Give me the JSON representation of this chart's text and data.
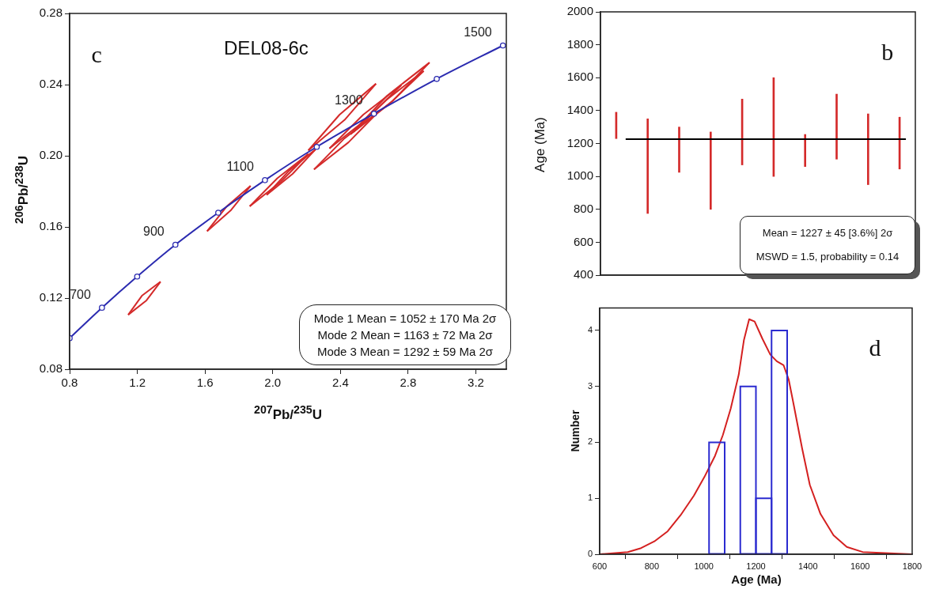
{
  "chart_data": [
    {
      "type": "line",
      "title": "DEL08-6c",
      "xlabel": "$^{207}$Pb/$^{235}$U",
      "ylabel": "$^{206}$Pb/$^{238}$U",
      "xlim": [
        0.8,
        3.38
      ],
      "xticks": [
        0.8,
        1.2,
        1.6,
        {
          "value": 2.0,
          "label": "2.0"
        },
        2.4,
        2.8,
        3.2
      ],
      "ylim": [
        0.08,
        0.28
      ],
      "yticks": [
        0.08,
        0.12,
        0.16,
        {
          "value": 0.2,
          "label": "0.20"
        },
        0.24,
        0.28
      ],
      "grid": false,
      "legend": false,
      "marker": "circle",
      "series": [
        {
          "color": "#2b2bb0",
          "x": [
            0.8,
            0.991,
            1.199,
            1.425,
            1.678,
            1.954,
            2.26,
            2.598,
            2.969,
            3.36
          ],
          "values": [
            0.0975,
            0.1146,
            0.1321,
            0.15,
            0.168,
            0.1863,
            0.205,
            0.2237,
            0.2432,
            0.262
          ]
        },
        {
          "color": "#d42a2a",
          "marker": "none",
          "x": [
            1.146,
            1.227,
            1.337
          ],
          "values": [
            0.1106,
            0.1213,
            0.1292
          ]
        },
        {
          "color": "#d42a2a",
          "marker": "none",
          "x": [
            1.146,
            1.254,
            1.337
          ],
          "values": [
            0.1106,
            0.1187,
            0.1292
          ]
        },
        {
          "color": "#d42a2a",
          "marker": "none",
          "x": [
            1.612,
            1.728,
            1.869
          ],
          "values": [
            0.1576,
            0.1715,
            0.1831
          ]
        },
        {
          "color": "#d42a2a",
          "marker": "none",
          "x": [
            1.612,
            1.751,
            1.869
          ],
          "values": [
            0.1576,
            0.1692,
            0.1831
          ]
        },
        {
          "color": "#d42a2a",
          "marker": "none",
          "x": [
            1.864,
            2.027,
            2.21
          ],
          "values": [
            0.1716,
            0.1873,
            0.201
          ]
        },
        {
          "color": "#d42a2a",
          "marker": "none",
          "x": [
            1.864,
            2.047,
            2.21
          ],
          "values": [
            0.1716,
            0.1853,
            0.201
          ]
        },
        {
          "color": "#d42a2a",
          "marker": "none",
          "x": [
            1.964,
            2.097,
            2.252
          ],
          "values": [
            0.178,
            0.1917,
            0.2035
          ]
        },
        {
          "color": "#d42a2a",
          "marker": "none",
          "x": [
            1.964,
            2.117,
            2.252
          ],
          "values": [
            0.178,
            0.1898,
            0.2035
          ]
        },
        {
          "color": "#d42a2a",
          "marker": "none",
          "x": [
            2.21,
            2.395,
            2.61
          ],
          "values": [
            0.203,
            0.2231,
            0.2405
          ]
        },
        {
          "color": "#d42a2a",
          "marker": "none",
          "x": [
            2.21,
            2.425,
            2.61
          ],
          "values": [
            0.203,
            0.2202,
            0.2405
          ]
        },
        {
          "color": "#d42a2a",
          "marker": "none",
          "x": [
            2.244,
            2.423,
            2.626
          ],
          "values": [
            0.1923,
            0.2097,
            0.2249
          ]
        },
        {
          "color": "#d42a2a",
          "marker": "none",
          "x": [
            2.244,
            2.447,
            2.626
          ],
          "values": [
            0.1923,
            0.2075,
            0.2249
          ]
        },
        {
          "color": "#d42a2a",
          "marker": "none",
          "x": [
            2.335,
            2.535,
            2.759
          ],
          "values": [
            0.2041,
            0.2231,
            0.2397
          ]
        },
        {
          "color": "#d42a2a",
          "marker": "none",
          "x": [
            2.335,
            2.558,
            2.759
          ],
          "values": [
            0.2041,
            0.2209,
            0.2397
          ]
        },
        {
          "color": "#d42a2a",
          "marker": "none",
          "x": [
            2.46,
            2.676,
            2.926
          ],
          "values": [
            0.2121,
            0.2338,
            0.2524
          ]
        },
        {
          "color": "#d42a2a",
          "marker": "none",
          "x": [
            2.46,
            2.709,
            2.926
          ],
          "values": [
            0.2121,
            0.2309,
            0.2524
          ]
        },
        {
          "color": "#d42a2a",
          "marker": "none",
          "x": [
            2.476,
            2.674,
            2.892
          ],
          "values": [
            0.2134,
            0.2316,
            0.2477
          ]
        },
        {
          "color": "#d42a2a",
          "marker": "none",
          "x": [
            2.476,
            2.694,
            2.892
          ],
          "values": [
            0.2134,
            0.2296,
            0.2477
          ]
        }
      ],
      "annotations": [
        "c",
        {
          "text": "700",
          "x": 0.991,
          "y": 0.1146
        },
        {
          "text": "900",
          "x": 1.425,
          "y": 0.15
        },
        {
          "text": "1100",
          "x": 1.954,
          "y": 0.1863
        },
        {
          "text": "1300",
          "x": 2.598,
          "y": 0.2237
        },
        {
          "text": "1500",
          "x": 3.36,
          "y": 0.262
        },
        "Mode 1 Mean = 1052 ± 170 Ma  2σ",
        "Mode 2 Mean = 1163 ± 72 Ma  2σ",
        "Mode 3 Mean = 1292 ± 59 Ma  2σ"
      ]
    },
    {
      "type": "bar",
      "ylabel": "Age (Ma)",
      "categories": [
        null,
        null,
        null,
        null,
        null,
        null,
        null,
        null,
        null,
        null
      ],
      "base": [
        1230,
        775,
        1025,
        800,
        1070,
        1000,
        1060,
        1105,
        950,
        1045
      ],
      "values": [
        160,
        575,
        275,
        470,
        400,
        600,
        195,
        395,
        430,
        315
      ],
      "color": "#d42a2a",
      "ylim": [
        400,
        2000
      ],
      "yticks": [
        400,
        600,
        800,
        1000,
        1200,
        1400,
        1600,
        1800,
        2000
      ],
      "tick_labels": "y",
      "grid": false,
      "legend": false,
      "ref_lines": [
        {
          "axis": "y",
          "value": 1227,
          "color": "#000000"
        }
      ],
      "annotations": [
        "b",
        "Mean = 1227 ± 45 [3.6%]  2σ",
        "MSWD = 1.5, probability = 0.14"
      ]
    },
    {
      "type": "histogram",
      "xlabel": "Age (Ma)",
      "ylabel": "Number",
      "bins": [
        1020,
        1080,
        1140,
        1200,
        1260,
        1320
      ],
      "values": [
        2,
        0,
        3,
        1,
        4
      ],
      "color": "#2b2bd0",
      "xlim": [
        600,
        1800
      ],
      "xticks": [
        600,
        800,
        1000,
        1200,
        1400,
        1600,
        1800
      ],
      "ylim": [
        0,
        4.4
      ],
      "yticks": [
        0,
        1,
        2,
        3,
        4
      ],
      "grid": false,
      "legend": false,
      "series": [
        {
          "type": "line",
          "color": "#d42020",
          "marker": "none",
          "x": [
            600,
            708,
            759,
            810,
            861,
            911,
            962,
            1002,
            1043,
            1073,
            1103,
            1134,
            1154,
            1174,
            1195,
            1225,
            1255,
            1280,
            1306,
            1326,
            1346,
            1377,
            1407,
            1448,
            1498,
            1549,
            1610,
            1800
          ],
          "values": [
            0,
            0.04,
            0.11,
            0.23,
            0.41,
            0.7,
            1.05,
            1.38,
            1.76,
            2.13,
            2.6,
            3.21,
            3.83,
            4.2,
            4.16,
            3.85,
            3.57,
            3.45,
            3.38,
            3.12,
            2.65,
            1.9,
            1.24,
            0.72,
            0.34,
            0.13,
            0.04,
            0
          ]
        }
      ],
      "annotations": [
        "d"
      ]
    }
  ]
}
